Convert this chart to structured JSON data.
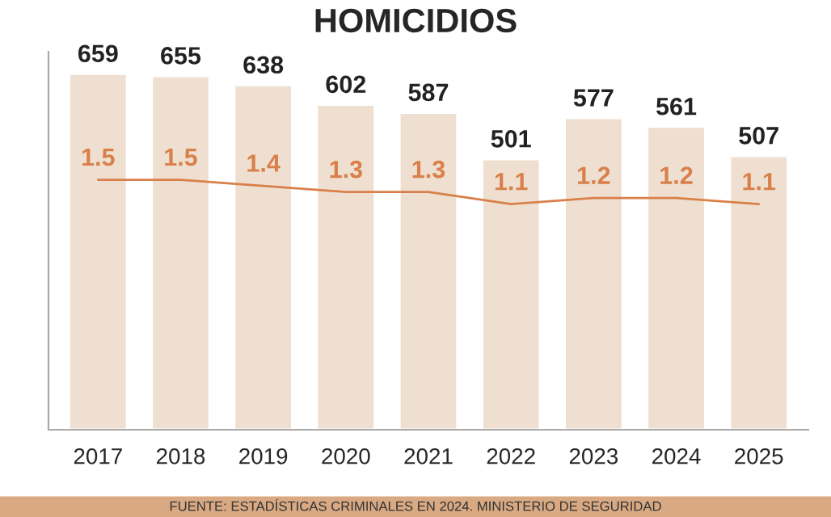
{
  "chart_data": {
    "type": "bar",
    "title": "HOMICIDIOS",
    "categories": [
      "2017",
      "2018",
      "2019",
      "2020",
      "2021",
      "2022",
      "2023",
      "2024",
      "2025"
    ],
    "series": [
      {
        "color": "#efdfd0",
        "values": [
          659,
          655,
          638,
          602,
          587,
          501,
          577,
          561,
          507
        ]
      },
      {
        "type": "line",
        "axis": "y2",
        "color": "#d9804a",
        "values": [
          1.5,
          1.5,
          1.4,
          1.3,
          1.3,
          1.1,
          1.2,
          1.2,
          1.1
        ]
      }
    ],
    "ylim": [
      0,
      700
    ],
    "y2lim": [
      -2.6,
      3.6
    ],
    "tick_labels": "x",
    "data_labels": true,
    "grid": false,
    "legend": false,
    "annotations": [
      "FUENTE: ESTADÍSTICAS CRIMINALES EN 2024. MINISTERIO DE SEGURIDAD"
    ]
  }
}
